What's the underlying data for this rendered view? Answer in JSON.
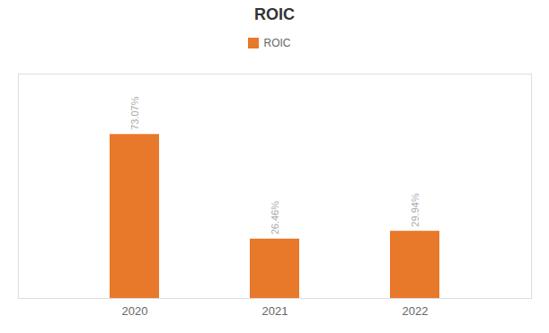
{
  "chart_data": {
    "type": "bar",
    "title": "ROIC",
    "categories": [
      "2020",
      "2021",
      "2022"
    ],
    "series": [
      {
        "name": "ROIC",
        "color": "#E8782A",
        "values": [
          73.07,
          26.46,
          29.94
        ],
        "value_labels": [
          "73.07%",
          "26.46%",
          "29.94%"
        ]
      }
    ],
    "ylim": [
      0,
      100
    ],
    "data_labels": true,
    "legend": "top",
    "grid": false,
    "tick_labels": "x"
  }
}
